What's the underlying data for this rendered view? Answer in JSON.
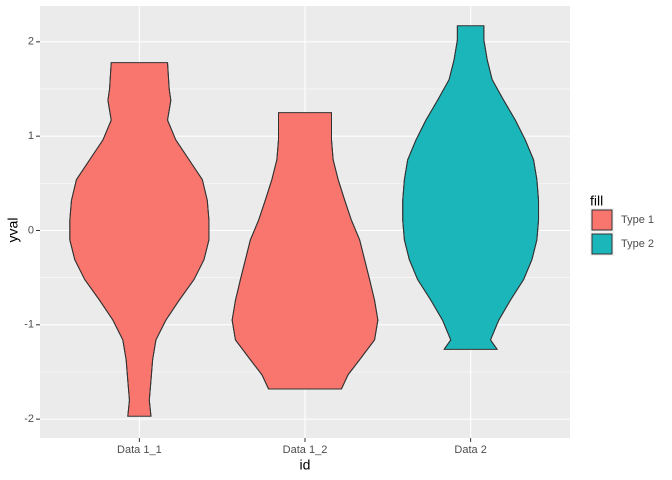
{
  "chart_data": {
    "type": "violin",
    "x_label": "id",
    "y_label": "yval",
    "categories": [
      "Data 1_1",
      "Data 1_2",
      "Data 2"
    ],
    "ylim": [
      -2.2,
      2.38
    ],
    "yticks": [
      -2,
      -1,
      0,
      1,
      2
    ],
    "grid": true,
    "legend": {
      "title": "fill",
      "position": "right",
      "entries": [
        {
          "name": "Type 1",
          "color": "#F8766D"
        },
        {
          "name": "Type 2",
          "color": "#1BB6BA"
        }
      ]
    },
    "violins": [
      {
        "fill": 0,
        "y": [
          1.78,
          1.5,
          1.38,
          1.17,
          0.96,
          0.75,
          0.54,
          0.32,
          0.11,
          -0.1,
          -0.31,
          -0.52,
          -0.74,
          -0.95,
          -1.16,
          -1.37,
          -1.59,
          -1.8,
          -1.97
        ],
        "half_width": [
          0.17,
          0.18,
          0.19,
          0.17,
          0.22,
          0.3,
          0.38,
          0.41,
          0.42,
          0.42,
          0.39,
          0.33,
          0.24,
          0.16,
          0.1,
          0.08,
          0.07,
          0.06,
          0.07
        ]
      },
      {
        "fill": 0,
        "y": [
          1.25,
          0.96,
          0.75,
          0.54,
          0.32,
          0.11,
          -0.1,
          -0.31,
          -0.52,
          -0.74,
          -0.95,
          -1.16,
          -1.37,
          -1.53,
          -1.68
        ],
        "half_width": [
          0.16,
          0.16,
          0.17,
          0.2,
          0.24,
          0.28,
          0.33,
          0.36,
          0.39,
          0.42,
          0.44,
          0.42,
          0.33,
          0.26,
          0.22
        ]
      },
      {
        "fill": 1,
        "y": [
          2.17,
          2.02,
          1.81,
          1.6,
          1.38,
          1.17,
          0.96,
          0.75,
          0.54,
          0.32,
          0.11,
          -0.1,
          -0.31,
          -0.52,
          -0.74,
          -0.95,
          -1.16,
          -1.26
        ],
        "half_width": [
          0.08,
          0.08,
          0.1,
          0.13,
          0.2,
          0.27,
          0.33,
          0.38,
          0.4,
          0.41,
          0.41,
          0.4,
          0.37,
          0.32,
          0.24,
          0.17,
          0.12,
          0.16
        ]
      }
    ]
  }
}
